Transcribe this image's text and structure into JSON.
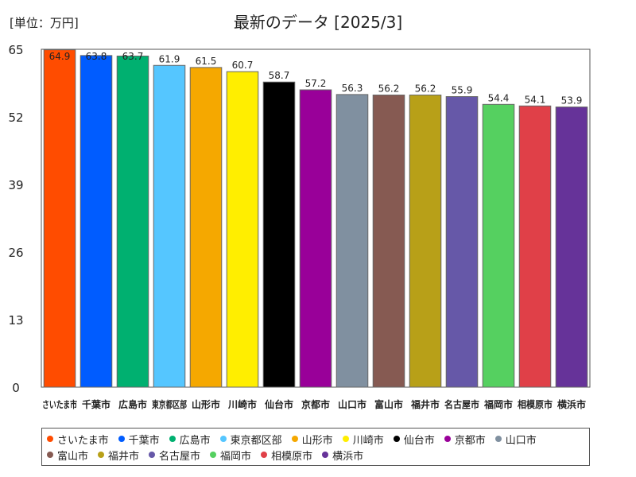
{
  "unit_label": "[単位：万円]",
  "title": "最新のデータ [2025/3]",
  "chart_data": {
    "type": "bar",
    "title": "最新のデータ [2025/3]",
    "ylabel": "",
    "xlabel": "",
    "ylim": [
      0,
      65
    ],
    "yticks": [
      "0",
      "13",
      "26",
      "39",
      "52",
      "65"
    ],
    "grid": false,
    "legend_position": "bottom",
    "categories": [
      "さいたま市",
      "千葉市",
      "広島市",
      "東京都区部",
      "山形市",
      "川崎市",
      "仙台市",
      "京都市",
      "山口市",
      "富山市",
      "福井市",
      "名古屋市",
      "福岡市",
      "相模原市",
      "横浜市"
    ],
    "values": [
      64.9,
      63.8,
      63.7,
      61.9,
      61.5,
      60.7,
      58.7,
      57.2,
      56.3,
      56.2,
      56.2,
      55.9,
      54.4,
      54.1,
      53.9
    ],
    "value_labels": [
      "64.9",
      "63.8",
      "63.7",
      "61.9",
      "61.5",
      "60.7",
      "58.7",
      "57.2",
      "56.3",
      "56.2",
      "56.2",
      "55.9",
      "54.4",
      "54.1",
      "53.9"
    ],
    "colors": [
      "#ff4c00",
      "#005cff",
      "#00b070",
      "#55c6ff",
      "#f5a800",
      "#ffee00",
      "#000000",
      "#990099",
      "#8090a0",
      "#865a52",
      "#b8a018",
      "#6658a8",
      "#55d060",
      "#e04048",
      "#663399"
    ]
  }
}
